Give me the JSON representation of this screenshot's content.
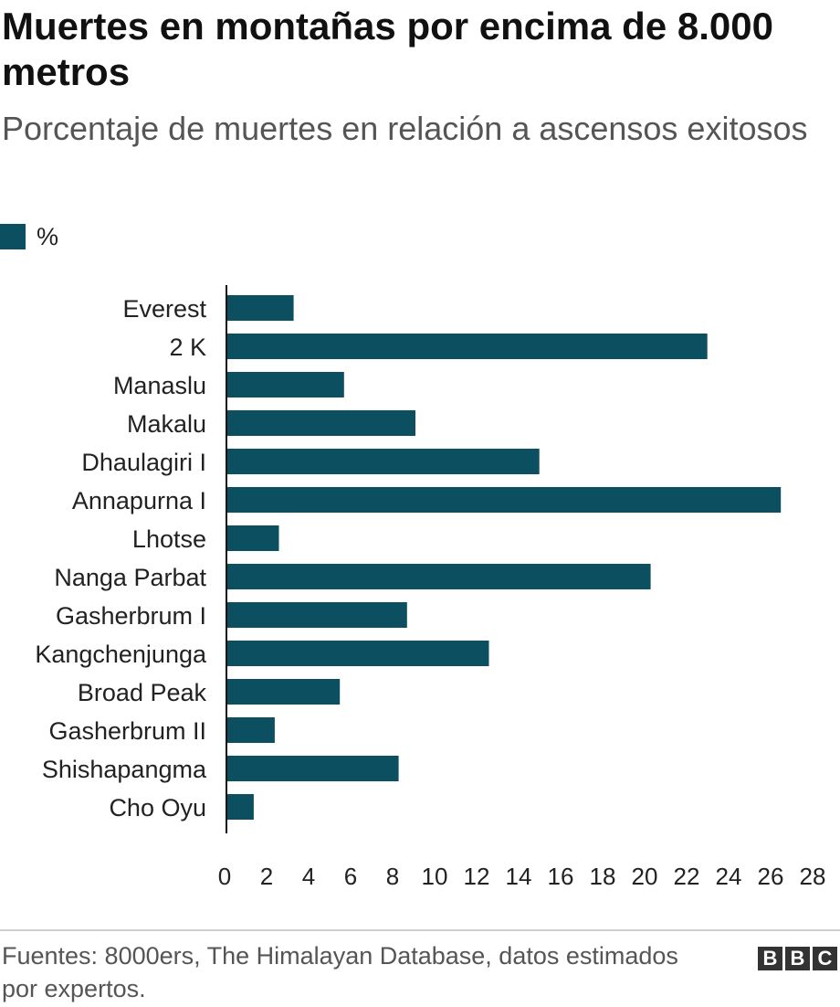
{
  "header": {
    "title": "Muertes en montañas por encima de 8.000 metros",
    "subtitle": "Porcentaje de muertes en relación a ascensos exitosos"
  },
  "legend": {
    "label": "%",
    "color": "#0b4f61"
  },
  "chart_data": {
    "type": "bar",
    "orientation": "horizontal",
    "title": "Muertes en montañas por encima de 8.000 metros",
    "subtitle": "Porcentaje de muertes en relación a ascensos exitosos",
    "categories": [
      "Everest",
      "2 K",
      "Manaslu",
      "Makalu",
      "Dhaulagiri I",
      "Annapurna I",
      "Lhotse",
      "Nanga Parbat",
      "Gasherbrum I",
      "Kangchenjunga",
      "Broad Peak",
      "Gasherbrum II",
      "Shishapangma",
      "Cho Oyu"
    ],
    "series": [
      {
        "name": "%",
        "values": [
          3.2,
          22.9,
          5.6,
          9.0,
          14.9,
          26.4,
          2.5,
          20.2,
          8.6,
          12.5,
          5.4,
          2.3,
          8.2,
          1.3
        ]
      }
    ],
    "xlim": [
      0,
      28
    ],
    "xticks": [
      "0",
      "2",
      "4",
      "6",
      "8",
      "10",
      "12",
      "14",
      "16",
      "18",
      "20",
      "22",
      "24",
      "26",
      "28"
    ],
    "grid": false,
    "legend_position": "top-left",
    "bar_color": "#0b4f61"
  },
  "footer": {
    "source": "Fuentes: 8000ers, The Himalayan Database, datos estimados por expertos.",
    "logo": [
      "B",
      "B",
      "C"
    ]
  }
}
